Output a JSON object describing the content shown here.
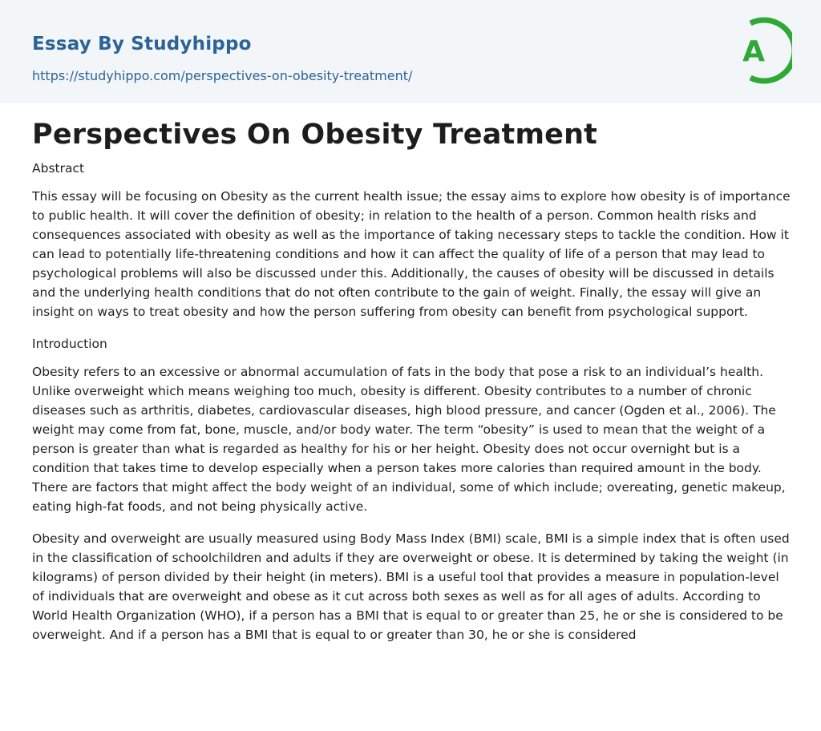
{
  "header": {
    "brand": "Essay By Studyhippo",
    "url": "https://studyhippo.com/perspectives-on-obesity-treatment/",
    "logo_letter": "A",
    "logo_color": "#2ea836",
    "brand_color": "#2c6396"
  },
  "article": {
    "title": "Perspectives On Obesity Treatment",
    "abstract_label": "Abstract",
    "abstract_text": "This essay will be focusing on Obesity as the current health issue; the essay aims to explore how obesity is of importance to public health. It will cover the definition of obesity; in relation to the health of a person. Common health risks and consequences associated with obesity as well as the importance of taking necessary steps to tackle the condition. How it can lead to potentially life-threatening conditions and how it can affect the quality of life of a person that may lead to psychological problems will also be discussed under this. Additionally, the causes of obesity will be discussed in details and the underlying health conditions that do not often contribute to the gain of weight. Finally, the essay will give an insight on ways to treat obesity and how the person suffering from obesity can benefit from psychological support.",
    "introduction_label": "Introduction",
    "intro_paragraph_1": "Obesity refers to an excessive or abnormal accumulation of fats in the body that pose a risk to an individual’s health. Unlike overweight which means weighing too much, obesity is different. Obesity contributes to a number of chronic diseases such as arthritis, diabetes, cardiovascular diseases, high blood pressure, and cancer (Ogden et al., 2006). The weight may come from fat, bone, muscle, and/or body water. The term “obesity” is used to mean that the weight of a person is greater than what is regarded as healthy for his or her height. Obesity does not occur overnight but is a condition that takes time to develop especially when a person takes more calories than required amount in the body. There are factors that might affect the body weight of an individual, some of which include; overeating, genetic makeup, eating high-fat foods, and not being physically active.",
    "intro_paragraph_2": "Obesity and overweight are usually measured using Body Mass Index (BMI) scale, BMI is a simple index that is often used in the classification of schoolchildren and adults if they are overweight or obese. It is determined by taking the weight (in kilograms) of person divided by their height (in meters). BMI is a useful tool that provides a measure in population-level of individuals that are overweight and obese as it cut across both sexes as well as for all ages of adults. According to World Health Organization (WHO), if a person has a BMI that is equal to or greater than 25, he or she is considered to be overweight. And if a person has a BMI that is equal to or greater than 30, he or she is considered"
  }
}
